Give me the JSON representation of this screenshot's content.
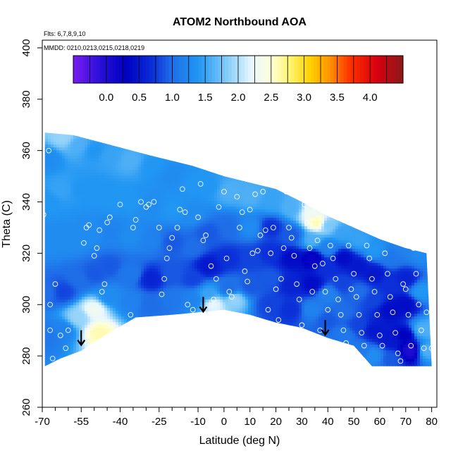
{
  "chart_data": {
    "type": "heatmap",
    "title": "ATOM2 Northbound AOA",
    "xlabel": "Latitude (deg N)",
    "ylabel": "Theta (C)",
    "xlim": [
      -70,
      82
    ],
    "ylim": [
      260,
      403
    ],
    "x_ticks": [
      -70,
      -55,
      -40,
      -25,
      -10,
      0,
      10,
      20,
      30,
      40,
      50,
      60,
      70,
      80
    ],
    "x_minor_ticks": [
      -65,
      -60,
      -50,
      -45,
      -35,
      -30,
      -20,
      -15,
      -5,
      5,
      15,
      25,
      35,
      45,
      55,
      65,
      75
    ],
    "y_ticks": [
      260,
      280,
      300,
      320,
      340,
      360,
      380,
      400
    ],
    "annotations": [
      "Flts: 6,7,8,9,10",
      "MMDD: 0210,0213,0215,0218,0219"
    ],
    "colorbar": {
      "min": -0.5,
      "max": 4.5,
      "ticks": [
        0.0,
        0.5,
        1.0,
        1.5,
        2.0,
        2.5,
        3.0,
        3.5,
        4.0
      ],
      "tick_labels": [
        "0.0",
        "0.5",
        "1.0",
        "1.5",
        "2.0",
        "2.5",
        "3.0",
        "3.5",
        "4.0"
      ],
      "stops": [
        {
          "v": -0.5,
          "c": "#7a1bf0"
        },
        {
          "v": -0.1,
          "c": "#2a10d8"
        },
        {
          "v": 0.3,
          "c": "#0000c0"
        },
        {
          "v": 0.7,
          "c": "#0b2fd8"
        },
        {
          "v": 1.0,
          "c": "#1f6ee8"
        },
        {
          "v": 1.4,
          "c": "#2196f3"
        },
        {
          "v": 1.8,
          "c": "#7cc8f8"
        },
        {
          "v": 2.2,
          "c": "#e8f7ff"
        },
        {
          "v": 2.5,
          "c": "#ffffd8"
        },
        {
          "v": 2.8,
          "c": "#fff36a"
        },
        {
          "v": 3.1,
          "c": "#ffd000"
        },
        {
          "v": 3.4,
          "c": "#ff9000"
        },
        {
          "v": 3.7,
          "c": "#ff3000"
        },
        {
          "v": 4.1,
          "c": "#d80010"
        },
        {
          "v": 4.5,
          "c": "#8b1a1a"
        }
      ]
    },
    "field_points": [
      [
        -68,
        357,
        1.3
      ],
      [
        -68,
        340,
        1.4
      ],
      [
        -68,
        325,
        1.3
      ],
      [
        -68,
        305,
        1.0
      ],
      [
        -68,
        288,
        1.1
      ],
      [
        -62,
        365,
        1.9
      ],
      [
        -62,
        345,
        1.5
      ],
      [
        -62,
        325,
        1.3
      ],
      [
        -62,
        305,
        0.8
      ],
      [
        -62,
        290,
        1.2
      ],
      [
        -56,
        362,
        1.6
      ],
      [
        -56,
        345,
        1.4
      ],
      [
        -56,
        325,
        1.3
      ],
      [
        -56,
        310,
        1.0
      ],
      [
        -56,
        295,
        1.9
      ],
      [
        -50,
        360,
        1.4
      ],
      [
        -50,
        345,
        1.4
      ],
      [
        -50,
        328,
        1.3
      ],
      [
        -50,
        312,
        0.9
      ],
      [
        -50,
        298,
        2.3
      ],
      [
        -48,
        289,
        2.6
      ],
      [
        -44,
        358,
        1.5
      ],
      [
        -44,
        342,
        1.4
      ],
      [
        -44,
        328,
        1.2
      ],
      [
        -44,
        315,
        0.9
      ],
      [
        -44,
        303,
        1.3
      ],
      [
        -36,
        356,
        1.6
      ],
      [
        -36,
        340,
        1.4
      ],
      [
        -36,
        327,
        1.3
      ],
      [
        -36,
        312,
        1.1
      ],
      [
        -36,
        301,
        1.2
      ],
      [
        -28,
        354,
        1.4
      ],
      [
        -28,
        338,
        1.3
      ],
      [
        -28,
        325,
        1.2
      ],
      [
        -28,
        310,
        0.6
      ],
      [
        -28,
        300,
        1.0
      ],
      [
        -20,
        350,
        1.3
      ],
      [
        -20,
        337,
        1.4
      ],
      [
        -20,
        324,
        0.9
      ],
      [
        -20,
        312,
        0.9
      ],
      [
        -20,
        302,
        1.1
      ],
      [
        -12,
        347,
        1.4
      ],
      [
        -12,
        335,
        1.3
      ],
      [
        -12,
        322,
        1.0
      ],
      [
        -12,
        310,
        0.8
      ],
      [
        -12,
        302,
        1.2
      ],
      [
        -6,
        346,
        1.4
      ],
      [
        -6,
        328,
        0.9
      ],
      [
        -6,
        315,
        0.5
      ],
      [
        -6,
        304,
        1.5
      ],
      [
        -4,
        300,
        2.2
      ],
      [
        2,
        344,
        1.6
      ],
      [
        2,
        330,
        1.0
      ],
      [
        2,
        318,
        0.7
      ],
      [
        2,
        306,
        1.0
      ],
      [
        4,
        302,
        1.9
      ],
      [
        10,
        342,
        1.6
      ],
      [
        10,
        330,
        1.3
      ],
      [
        10,
        318,
        0.8
      ],
      [
        10,
        307,
        0.9
      ],
      [
        18,
        340,
        1.5
      ],
      [
        18,
        330,
        0.7
      ],
      [
        18,
        320,
        0.7
      ],
      [
        18,
        310,
        0.9
      ],
      [
        18,
        300,
        0.8
      ],
      [
        26,
        338,
        1.6
      ],
      [
        26,
        327,
        0.9
      ],
      [
        26,
        318,
        0.4
      ],
      [
        26,
        308,
        0.6
      ],
      [
        26,
        298,
        0.7
      ],
      [
        34,
        336,
        2.3
      ],
      [
        36,
        332,
        2.6
      ],
      [
        34,
        325,
        1.6
      ],
      [
        34,
        318,
        0.2
      ],
      [
        34,
        308,
        0.4
      ],
      [
        34,
        298,
        1.2
      ],
      [
        40,
        331,
        1.8
      ],
      [
        40,
        322,
        1.2
      ],
      [
        40,
        314,
        0.7
      ],
      [
        40,
        304,
        1.2
      ],
      [
        40,
        294,
        0.9
      ],
      [
        46,
        328,
        1.5
      ],
      [
        46,
        318,
        0.4
      ],
      [
        46,
        308,
        0.8
      ],
      [
        46,
        297,
        1.0
      ],
      [
        46,
        288,
        1.1
      ],
      [
        52,
        325,
        1.5
      ],
      [
        52,
        315,
        0.5
      ],
      [
        52,
        305,
        1.0
      ],
      [
        52,
        292,
        0.8
      ],
      [
        52,
        282,
        1.1
      ],
      [
        58,
        321,
        1.4
      ],
      [
        58,
        312,
        0.5
      ],
      [
        58,
        302,
        0.8
      ],
      [
        58,
        290,
        0.5
      ],
      [
        58,
        280,
        1.3
      ],
      [
        64,
        318,
        1.1
      ],
      [
        64,
        308,
        0.7
      ],
      [
        64,
        298,
        0.4
      ],
      [
        64,
        286,
        0.5
      ],
      [
        64,
        279,
        0.9
      ],
      [
        70,
        322,
        1.2
      ],
      [
        70,
        310,
        0.6
      ],
      [
        70,
        300,
        0.4
      ],
      [
        70,
        288,
        0.3
      ],
      [
        72,
        282,
        0.0
      ],
      [
        76,
        320,
        1.3
      ],
      [
        76,
        305,
        1.4
      ],
      [
        76,
        290,
        1.6
      ],
      [
        78,
        282,
        1.6
      ],
      [
        80,
        320,
        1.2
      ],
      [
        80,
        290,
        1.6
      ]
    ],
    "domain": {
      "top": [
        [
          -69,
          367
        ],
        [
          -58,
          366
        ],
        [
          -43,
          362
        ],
        [
          -28,
          358
        ],
        [
          -12,
          354
        ],
        [
          0,
          350
        ],
        [
          10,
          347.5
        ],
        [
          20,
          345
        ],
        [
          30,
          340
        ],
        [
          40,
          334.5
        ],
        [
          50,
          330
        ],
        [
          60,
          325.5
        ],
        [
          70,
          322
        ],
        [
          78,
          320
        ]
      ],
      "bottom": [
        [
          -69,
          276
        ],
        [
          -63,
          279
        ],
        [
          -55,
          282
        ],
        [
          -46,
          288
        ],
        [
          -34,
          295
        ],
        [
          -20,
          296
        ],
        [
          -10,
          297
        ],
        [
          0,
          298
        ],
        [
          10,
          296
        ],
        [
          20,
          293
        ],
        [
          30,
          291
        ],
        [
          40,
          287
        ],
        [
          50,
          284
        ],
        [
          57,
          276
        ],
        [
          80,
          276
        ]
      ]
    },
    "samples": [
      [
        -69.5,
        335
      ],
      [
        -67.5,
        360
      ],
      [
        -67,
        300
      ],
      [
        -67,
        290
      ],
      [
        -66,
        279
      ],
      [
        -65,
        308
      ],
      [
        -63,
        288
      ],
      [
        -61,
        283
      ],
      [
        -60,
        290
      ],
      [
        -54,
        324
      ],
      [
        -53,
        330
      ],
      [
        -52,
        331
      ],
      [
        -50,
        319
      ],
      [
        -49,
        322
      ],
      [
        -48,
        329
      ],
      [
        -47,
        305
      ],
      [
        -46,
        308
      ],
      [
        -45,
        332
      ],
      [
        -44,
        334
      ],
      [
        -40,
        339
      ],
      [
        -36,
        296
      ],
      [
        -35,
        330
      ],
      [
        -34,
        333
      ],
      [
        -32,
        340
      ],
      [
        -30,
        338
      ],
      [
        -29,
        339
      ],
      [
        -27,
        340
      ],
      [
        -25,
        330
      ],
      [
        -24,
        304
      ],
      [
        -23,
        310
      ],
      [
        -22,
        318
      ],
      [
        -21,
        322
      ],
      [
        -20,
        326
      ],
      [
        -18,
        330
      ],
      [
        -17,
        337
      ],
      [
        -16,
        345
      ],
      [
        -15,
        336
      ],
      [
        -14,
        300
      ],
      [
        -12,
        298
      ],
      [
        -10,
        334
      ],
      [
        -9,
        347
      ],
      [
        -8,
        325
      ],
      [
        -7,
        327
      ],
      [
        -5,
        315
      ],
      [
        -4,
        302
      ],
      [
        -3,
        310
      ],
      [
        -2,
        338
      ],
      [
        0,
        344
      ],
      [
        1,
        318
      ],
      [
        2,
        305
      ],
      [
        3,
        303
      ],
      [
        4,
        295
      ],
      [
        5,
        342
      ],
      [
        6,
        330
      ],
      [
        7,
        336
      ],
      [
        8,
        313
      ],
      [
        9,
        309
      ],
      [
        10,
        337
      ],
      [
        11,
        320
      ],
      [
        12,
        343
      ],
      [
        13,
        321
      ],
      [
        14,
        327
      ],
      [
        15,
        344
      ],
      [
        16,
        329
      ],
      [
        17,
        298
      ],
      [
        18,
        320
      ],
      [
        19,
        330
      ],
      [
        20,
        306
      ],
      [
        21,
        294
      ],
      [
        22,
        310
      ],
      [
        23,
        322
      ],
      [
        24,
        344
      ],
      [
        25,
        330
      ],
      [
        26,
        326
      ],
      [
        27,
        319
      ],
      [
        28,
        308
      ],
      [
        29,
        302
      ],
      [
        30,
        292
      ],
      [
        31,
        339
      ],
      [
        32,
        332
      ],
      [
        33,
        322
      ],
      [
        34,
        305
      ],
      [
        35,
        315
      ],
      [
        36,
        325
      ],
      [
        37,
        290
      ],
      [
        38,
        316
      ],
      [
        39,
        305
      ],
      [
        40,
        298
      ],
      [
        41,
        323
      ],
      [
        42,
        318
      ],
      [
        43,
        310
      ],
      [
        44,
        302
      ],
      [
        45,
        296
      ],
      [
        46,
        290
      ],
      [
        47,
        285
      ],
      [
        48,
        323
      ],
      [
        49,
        306
      ],
      [
        50,
        312
      ],
      [
        51,
        303
      ],
      [
        52,
        296
      ],
      [
        53,
        289
      ],
      [
        54,
        284
      ],
      [
        55,
        323
      ],
      [
        56,
        318
      ],
      [
        57,
        310
      ],
      [
        58,
        305
      ],
      [
        59,
        296
      ],
      [
        60,
        288
      ],
      [
        61,
        284
      ],
      [
        62,
        320
      ],
      [
        63,
        312
      ],
      [
        64,
        303
      ],
      [
        65,
        297
      ],
      [
        66,
        289
      ],
      [
        67,
        281
      ],
      [
        68,
        278
      ],
      [
        69,
        308
      ],
      [
        70,
        306
      ],
      [
        71,
        296
      ],
      [
        72,
        284
      ],
      [
        73,
        322
      ],
      [
        74,
        312
      ],
      [
        75,
        300
      ],
      [
        76,
        290
      ],
      [
        77,
        283
      ],
      [
        78,
        297
      ],
      [
        79,
        322
      ],
      [
        80,
        283
      ],
      [
        81,
        277
      ]
    ],
    "arrows": [
      [
        -55,
        290
      ],
      [
        -8,
        303
      ],
      [
        39,
        294
      ]
    ]
  }
}
